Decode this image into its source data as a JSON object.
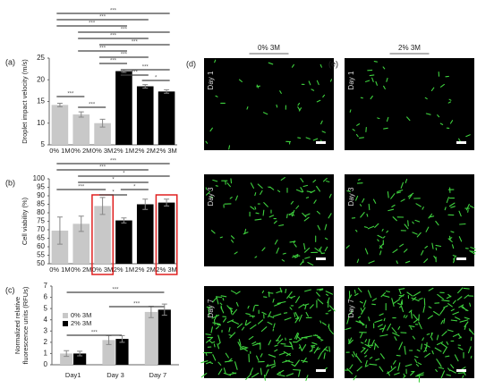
{
  "chart_data": [
    {
      "type": "bar",
      "panel": "(a)",
      "ylabel": "Droplet impact velocity (m/s)",
      "categories": [
        "0% 1M",
        "0% 2M",
        "0% 3M",
        "2% 1M",
        "2% 2M",
        "2% 3M"
      ],
      "values": [
        14.2,
        12.0,
        10.0,
        22.0,
        18.5,
        17.3
      ],
      "errors": [
        0.4,
        0.6,
        0.9,
        0.3,
        0.4,
        0.4
      ],
      "colors": [
        "#c8c8c8",
        "#c8c8c8",
        "#c8c8c8",
        "#000000",
        "#000000",
        "#000000"
      ],
      "ylim": [
        5,
        25
      ],
      "yticks": [
        5,
        10,
        15,
        20,
        25
      ],
      "brackets": [
        {
          "from": 0,
          "to": 5,
          "label": "***"
        },
        {
          "from": 0,
          "to": 4,
          "label": "***"
        },
        {
          "from": 0,
          "to": 3,
          "label": "***"
        },
        {
          "from": 1,
          "to": 5,
          "label": "***"
        },
        {
          "from": 1,
          "to": 4,
          "label": "***"
        },
        {
          "from": 2,
          "to": 5,
          "label": "***"
        },
        {
          "from": 1,
          "to": 3,
          "label": "***"
        },
        {
          "from": 2,
          "to": 4,
          "label": "***"
        },
        {
          "from": 2,
          "to": 3,
          "label": "***"
        },
        {
          "from": 3,
          "to": 5,
          "label": "***"
        },
        {
          "from": 3,
          "to": 4,
          "label": "***"
        },
        {
          "from": 4,
          "to": 5,
          "label": "*"
        },
        {
          "from": 0,
          "to": 1,
          "label": "***"
        },
        {
          "from": 1,
          "to": 2,
          "label": "***"
        }
      ]
    },
    {
      "type": "bar",
      "panel": "(b)",
      "ylabel": "Cell viability (%)",
      "categories": [
        "0% 1M",
        "0% 2M",
        "0% 3M",
        "2% 1M",
        "2% 2M",
        "2% 3M"
      ],
      "values": [
        69.5,
        73.5,
        84,
        75.5,
        85,
        86
      ],
      "errors": [
        8,
        4.5,
        5,
        1.5,
        3,
        2
      ],
      "colors": [
        "#c8c8c8",
        "#c8c8c8",
        "#c8c8c8",
        "#000000",
        "#000000",
        "#000000"
      ],
      "highlight": [
        2,
        5
      ],
      "highlight_color": "#e02020",
      "ylim": [
        50,
        100
      ],
      "yticks": [
        50,
        55,
        60,
        65,
        70,
        75,
        80,
        85,
        90,
        95,
        100
      ],
      "brackets": [
        {
          "from": 0,
          "to": 5,
          "label": "***"
        },
        {
          "from": 0,
          "to": 4,
          "label": "***"
        },
        {
          "from": 1,
          "to": 5,
          "label": "*"
        },
        {
          "from": 1,
          "to": 4,
          "label": "*"
        },
        {
          "from": 0,
          "to": 2,
          "label": "***"
        },
        {
          "from": 2,
          "to": 3,
          "label": "*"
        },
        {
          "from": 3,
          "to": 4,
          "label": "*"
        }
      ]
    },
    {
      "type": "grouped-bar",
      "panel": "(c)",
      "ylabel": [
        "Normalized relative",
        "fluorescence units (RFUs)"
      ],
      "categories": [
        "Day1",
        "Day 3",
        "Day 7"
      ],
      "series": [
        {
          "name": "0% 3M",
          "color": "#c8c8c8",
          "values": [
            1.0,
            2.2,
            4.7
          ],
          "errors": [
            0.25,
            0.4,
            0.5
          ]
        },
        {
          "name": "2% 3M",
          "color": "#000000",
          "values": [
            1.0,
            2.3,
            4.9
          ],
          "errors": [
            0.2,
            0.3,
            0.5
          ]
        }
      ],
      "ylim": [
        0,
        7
      ],
      "yticks": [
        0,
        1,
        2,
        3,
        4,
        5,
        6,
        7
      ],
      "legend": "upper-left",
      "brackets": [
        {
          "from": 0,
          "to": 2,
          "label": "***"
        },
        {
          "from": 1,
          "to": 2,
          "label": "***"
        },
        {
          "from": 0,
          "to": 1,
          "label": "***"
        }
      ]
    }
  ],
  "images": {
    "columns": [
      {
        "panel": "(d)",
        "label": "0% 3M"
      },
      {
        "panel": "(e)",
        "label": "2% 3M"
      }
    ],
    "rows": [
      "Day 1",
      "Day 3",
      "Day 7"
    ]
  }
}
